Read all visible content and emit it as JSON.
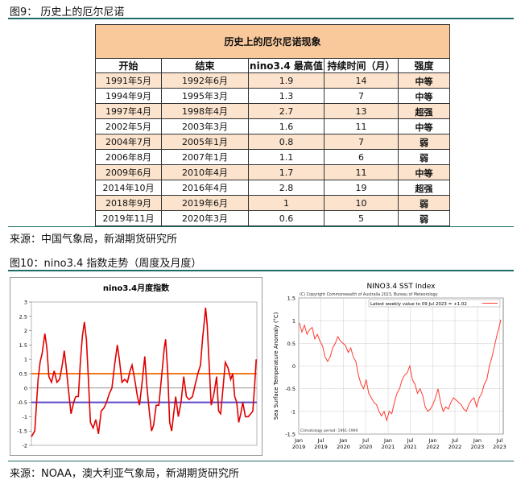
{
  "fig9": {
    "caption": "图9： 历史上的厄尔尼诺",
    "table_title": "历史上的厄尔尼诺现象",
    "headers": [
      "开始",
      "结束",
      "nino3.4 最高值",
      "持续时间（月）",
      "强度"
    ],
    "rows": [
      {
        "start": "1991年5月",
        "end": "1992年6月",
        "peak": "1.9",
        "months": "14",
        "strength": "中等"
      },
      {
        "start": "1994年9月",
        "end": "1995年3月",
        "peak": "1.3",
        "months": "7",
        "strength": "中等"
      },
      {
        "start": "1997年4月",
        "end": "1998年4月",
        "peak": "2.7",
        "months": "13",
        "strength": "超强"
      },
      {
        "start": "2002年5月",
        "end": "2003年3月",
        "peak": "1.6",
        "months": "11",
        "strength": "中等"
      },
      {
        "start": "2004年7月",
        "end": "2005年1月",
        "peak": "0.8",
        "months": "7",
        "strength": "弱"
      },
      {
        "start": "2006年8月",
        "end": "2007年1月",
        "peak": "1.1",
        "months": "6",
        "strength": "弱"
      },
      {
        "start": "2009年6月",
        "end": "2010年4月",
        "peak": "1.7",
        "months": "11",
        "strength": "中等"
      },
      {
        "start": "2014年10月",
        "end": "2016年4月",
        "peak": "2.8",
        "months": "19",
        "strength": "超强"
      },
      {
        "start": "2018年9月",
        "end": "2019年6月",
        "peak": "1",
        "months": "10",
        "strength": "弱"
      },
      {
        "start": "2019年11月",
        "end": "2020年3月",
        "peak": "0.6",
        "months": "5",
        "strength": "弱"
      }
    ],
    "source": "来源：中国气象局，新湖期货研究所"
  },
  "fig10": {
    "caption": "图10：nino3.4 指数走势（周度及月度）",
    "source": "来源：NOAA，澳大利亚气象局，新湖期货研究所"
  },
  "chart_data": [
    {
      "type": "line",
      "title": "nino3.4月度指数",
      "ylim": [
        -2,
        3
      ],
      "yticks": [
        "3",
        "2.5",
        "2",
        "1.5",
        "1",
        "0.5",
        "0",
        "-0.5",
        "-1",
        "-1.5",
        "-2"
      ],
      "reference_lines": [
        0.5,
        -0.5
      ],
      "colors": {
        "series": "#e00000",
        "upper": "#f07a1a",
        "lower": "#5a48c8"
      },
      "x": [
        1990.0,
        1990.5,
        1991.0,
        1991.3,
        1991.6,
        1992.0,
        1992.3,
        1992.6,
        1993.0,
        1993.4,
        1993.8,
        1994.2,
        1994.6,
        1994.9,
        1995.2,
        1995.5,
        1995.9,
        1996.3,
        1996.6,
        1997.0,
        1997.3,
        1997.6,
        1997.9,
        1998.2,
        1998.5,
        1998.8,
        1999.2,
        1999.6,
        2000.0,
        2000.4,
        2000.8,
        2001.2,
        2001.6,
        2002.0,
        2002.4,
        2002.8,
        2003.1,
        2003.5,
        2003.9,
        2004.3,
        2004.7,
        2005.0,
        2005.4,
        2005.8,
        2006.1,
        2006.5,
        2006.9,
        2007.2,
        2007.6,
        2007.9,
        2008.2,
        2008.6,
        2009.0,
        2009.4,
        2009.8,
        2010.0,
        2010.3,
        2010.6,
        2010.9,
        2011.2,
        2011.5,
        2011.9,
        2012.3,
        2012.7,
        2013.1,
        2013.5,
        2014.0,
        2014.4,
        2014.8,
        2015.2,
        2015.5,
        2015.8,
        2015.95,
        2016.2,
        2016.5,
        2016.8,
        2017.2,
        2017.6,
        2017.9,
        2018.2,
        2018.6,
        2018.9,
        2019.3,
        2019.7,
        2020.0,
        2020.3,
        2020.6,
        2020.9,
        2021.2,
        2021.5,
        2021.9,
        2022.3,
        2022.7,
        2023.0,
        2023.3,
        2023.5
      ],
      "values": [
        -1.7,
        -1.5,
        0.3,
        0.9,
        1.2,
        1.9,
        1.4,
        0.4,
        0.2,
        0.6,
        0.2,
        0.3,
        0.8,
        1.3,
        0.7,
        0.0,
        -0.9,
        -0.5,
        -0.3,
        -0.3,
        0.9,
        1.8,
        2.3,
        1.7,
        0.3,
        -1.2,
        -1.4,
        -1.1,
        -1.6,
        -0.8,
        -0.7,
        -0.5,
        -0.2,
        0.0,
        0.8,
        1.5,
        1.0,
        0.2,
        0.3,
        0.2,
        0.6,
        0.8,
        0.3,
        -0.3,
        -0.6,
        0.2,
        1.1,
        0.1,
        -0.9,
        -1.5,
        -1.3,
        -0.6,
        -0.6,
        0.4,
        1.4,
        1.7,
        0.6,
        -1.2,
        -1.5,
        -0.9,
        -0.3,
        -1.0,
        -0.5,
        0.4,
        -0.3,
        -0.4,
        -0.3,
        0.1,
        0.5,
        0.8,
        1.7,
        2.4,
        2.8,
        2.2,
        0.8,
        -0.6,
        -0.2,
        0.4,
        -0.8,
        -0.9,
        0.1,
        0.9,
        0.7,
        0.3,
        0.5,
        -0.3,
        -0.5,
        -1.2,
        -0.9,
        -0.5,
        -1.0,
        -1.0,
        -0.9,
        -0.8,
        0.2,
        1.0
      ]
    },
    {
      "type": "line",
      "title": "NINO3.4 SST Index",
      "copyright": "(C) Copyright Commonwealth of Australia 2023, Bureau of Meteorology",
      "legend": "Latest weekly value to 09 Jul 2023 = +1.02",
      "ylabel": "Sea Surface Temperature Anomaly (°C)",
      "ylim": [
        -1.5,
        1.5
      ],
      "yticks": [
        "1.5",
        "1",
        "0.5",
        "0",
        "-0.5",
        "-1",
        "-1.5"
      ],
      "xticks": [
        {
          "m": "Jan",
          "y": "2019"
        },
        {
          "m": "Jul",
          "y": "2019"
        },
        {
          "m": "Jan",
          "y": "2020"
        },
        {
          "m": "Jul",
          "y": "2020"
        },
        {
          "m": "Jan",
          "y": "2021"
        },
        {
          "m": "Jul",
          "y": "2021"
        },
        {
          "m": "Jan",
          "y": "2022"
        },
        {
          "m": "Jul",
          "y": "2022"
        },
        {
          "m": "Jan",
          "y": "2023"
        },
        {
          "m": "Jul",
          "y": "2023"
        }
      ],
      "xlim": [
        "2019-01-01",
        "2023-07-31"
      ],
      "footnote": "Climatology period: 1961-1990",
      "color": "#ff3b30",
      "x": [
        "2019-01-06",
        "2019-01-27",
        "2019-02-17",
        "2019-03-10",
        "2019-03-31",
        "2019-04-21",
        "2019-05-12",
        "2019-06-02",
        "2019-06-23",
        "2019-07-14",
        "2019-08-04",
        "2019-08-25",
        "2019-09-15",
        "2019-10-06",
        "2019-10-27",
        "2019-11-17",
        "2019-12-08",
        "2019-12-29",
        "2020-01-19",
        "2020-02-09",
        "2020-03-01",
        "2020-03-22",
        "2020-04-12",
        "2020-05-03",
        "2020-05-24",
        "2020-06-14",
        "2020-07-05",
        "2020-07-26",
        "2020-08-16",
        "2020-09-06",
        "2020-09-27",
        "2020-10-18",
        "2020-11-08",
        "2020-11-29",
        "2020-12-20",
        "2021-01-10",
        "2021-01-31",
        "2021-02-21",
        "2021-03-14",
        "2021-04-04",
        "2021-04-25",
        "2021-05-16",
        "2021-06-06",
        "2021-06-27",
        "2021-07-18",
        "2021-08-08",
        "2021-08-29",
        "2021-09-19",
        "2021-10-10",
        "2021-10-31",
        "2021-11-21",
        "2021-12-12",
        "2022-01-02",
        "2022-01-23",
        "2022-02-13",
        "2022-03-06",
        "2022-03-27",
        "2022-04-17",
        "2022-05-08",
        "2022-05-29",
        "2022-06-19",
        "2022-07-10",
        "2022-07-31",
        "2022-08-21",
        "2022-09-11",
        "2022-10-02",
        "2022-10-23",
        "2022-11-13",
        "2022-12-04",
        "2022-12-25",
        "2023-01-15",
        "2023-02-05",
        "2023-02-26",
        "2023-03-19",
        "2023-04-09",
        "2023-04-30",
        "2023-05-21",
        "2023-06-11",
        "2023-07-02",
        "2023-07-09"
      ],
      "values": [
        0.95,
        0.75,
        0.9,
        0.7,
        0.8,
        0.85,
        0.6,
        0.7,
        0.55,
        0.45,
        0.2,
        0.1,
        0.2,
        0.4,
        0.5,
        0.65,
        0.55,
        0.5,
        0.45,
        0.3,
        0.4,
        0.2,
        0.1,
        -0.2,
        -0.4,
        -0.5,
        -0.3,
        -0.6,
        -0.7,
        -0.8,
        -0.85,
        -1.0,
        -1.1,
        -1.0,
        -1.2,
        -1.0,
        -1.05,
        -0.8,
        -0.6,
        -0.5,
        -0.3,
        -0.2,
        -0.15,
        0.0,
        -0.3,
        -0.4,
        -0.6,
        -0.5,
        -0.65,
        -0.9,
        -1.0,
        -0.95,
        -0.85,
        -0.7,
        -0.5,
        -0.8,
        -1.0,
        -0.9,
        -0.95,
        -0.8,
        -0.7,
        -0.75,
        -0.8,
        -0.85,
        -0.95,
        -1.0,
        -0.85,
        -0.75,
        -0.7,
        -0.9,
        -0.7,
        -0.6,
        -0.4,
        -0.3,
        0.0,
        0.2,
        0.45,
        0.7,
        0.9,
        1.02
      ]
    }
  ]
}
